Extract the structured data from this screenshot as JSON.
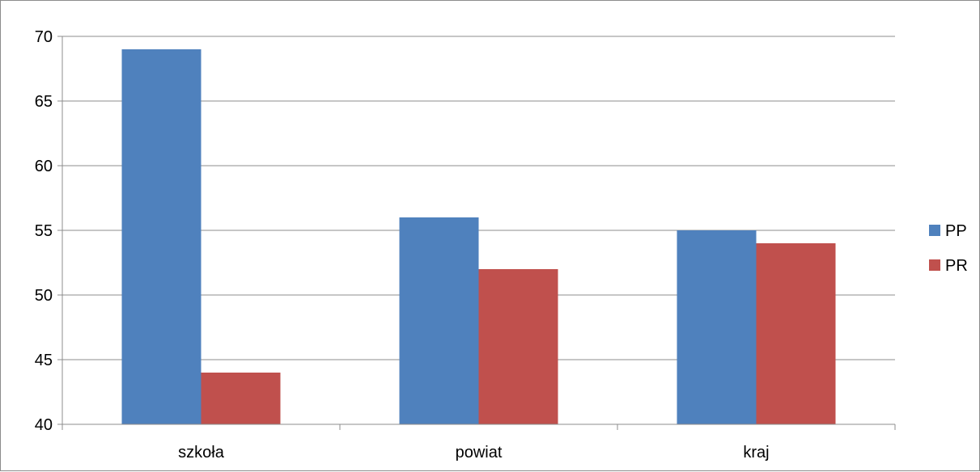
{
  "chart_data": {
    "type": "bar",
    "categories": [
      "szkoła",
      "powiat",
      "kraj"
    ],
    "series": [
      {
        "name": "PP",
        "values": [
          69,
          56,
          55
        ],
        "color": "#4F81BD"
      },
      {
        "name": "PR",
        "values": [
          44,
          52,
          54
        ],
        "color": "#C0504D"
      }
    ],
    "ylim": [
      40,
      70
    ],
    "yticks": [
      40,
      45,
      50,
      55,
      60,
      65,
      70
    ],
    "grid": true,
    "legend_position": "right"
  }
}
